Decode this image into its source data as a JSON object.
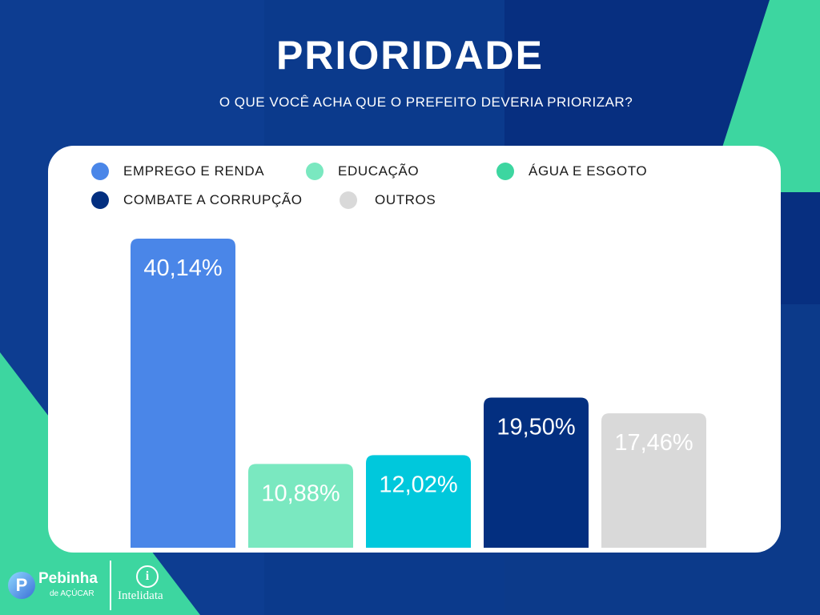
{
  "header": {
    "title": "PRIORIDADE",
    "subtitle": "O QUE VOCÊ ACHA QUE O PREFEITO DEVERIA PRIORIZAR?"
  },
  "logos": {
    "left_name": "Pebinha",
    "left_sub": "de AÇÚCAR",
    "left_badge": "P",
    "right_name": "Intelidata",
    "right_icon": "i"
  },
  "chart_data": {
    "type": "bar",
    "title": "PRIORIDADE",
    "subtitle": "O QUE VOCÊ ACHA QUE O PREFEITO DEVERIA PRIORIZAR?",
    "categories": [
      "EMPREGO E RENDA",
      "EDUCAÇÃO",
      "ÁGUA E ESGOTO",
      "COMBATE A CORRUPÇÃO",
      "OUTROS"
    ],
    "values": [
      40.14,
      10.88,
      12.02,
      19.5,
      17.46
    ],
    "value_labels": [
      "40,14%",
      "10,88%",
      "12,02%",
      "19,50%",
      "17,46%"
    ],
    "colors": [
      "#4a86e8",
      "#7ae8c0",
      "#00c8dc",
      "#032f80",
      "#d9d9d9"
    ],
    "legend_colors": [
      "#4a86e8",
      "#7ae8c0",
      "#3dd6a0",
      "#032f80",
      "#d9d9d9"
    ],
    "legend_placement": "top",
    "xlabel": "",
    "ylabel": "",
    "ylim": [
      0,
      40.14
    ],
    "grid": false
  }
}
